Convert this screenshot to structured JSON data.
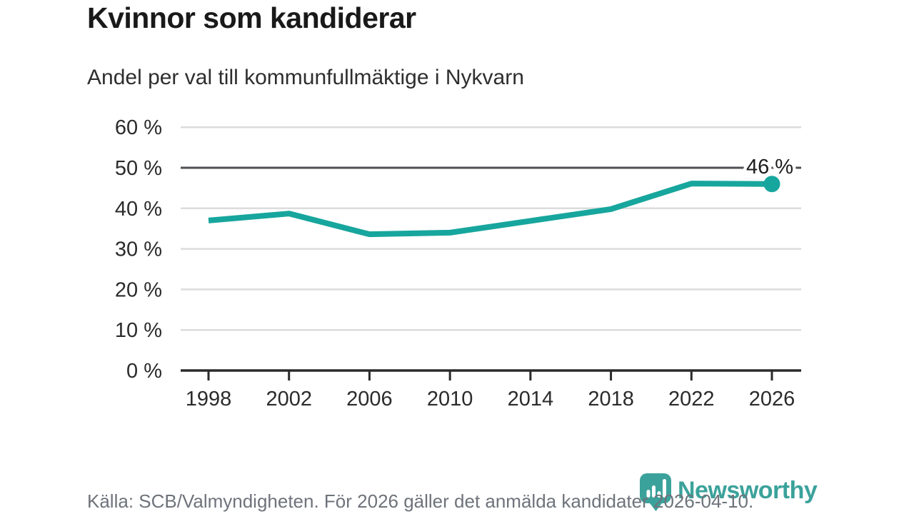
{
  "header": {
    "title": "Kvinnor som kandiderar",
    "subtitle": "Andel per val till kommunfullmäktige i Nykvarn"
  },
  "chart_data": {
    "type": "line",
    "title": "Kvinnor som kandiderar",
    "subtitle": "Andel per val till kommunfullmäktige i Nykvarn",
    "categories": [
      "1998",
      "2002",
      "2006",
      "2010",
      "2014",
      "2018",
      "2022",
      "2026"
    ],
    "values": [
      37,
      38.7,
      33.6,
      34,
      36.9,
      39.8,
      46.1,
      46
    ],
    "unit": "%",
    "ylim": [
      0,
      60
    ],
    "ytick_step": 10,
    "ytick_suffix": " %",
    "reference_line": 50,
    "grid": "horizontal",
    "legend": "none",
    "end_label": "46 %",
    "colors": {
      "line": "#17A69D",
      "marker": "#17A69D",
      "grid": "#dcdcdc",
      "reference_line": "#4f5054",
      "axis": "#2b2b2b",
      "label_text": "#1c1c1c"
    }
  },
  "footer": {
    "source": "Källa: SCB/Valmyndigheten. För 2026 gäller det anmälda kandidater 2026-04-10."
  },
  "logo": {
    "brand": "Newsworthy",
    "color": "#3BA29B",
    "icon": "bar-chart-pin-icon"
  }
}
